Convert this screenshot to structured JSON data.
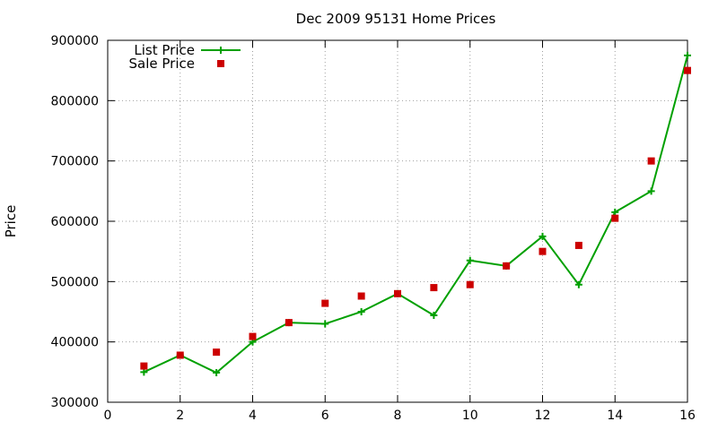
{
  "chart_data": {
    "type": "line",
    "title": "Dec 2009 95131 Home Prices",
    "xlabel": "",
    "ylabel": "Price",
    "xlim": [
      0,
      16
    ],
    "ylim": [
      300000,
      900000
    ],
    "x_ticks": [
      0,
      2,
      4,
      6,
      8,
      10,
      12,
      14,
      16
    ],
    "y_ticks": [
      300000,
      400000,
      500000,
      600000,
      700000,
      800000,
      900000
    ],
    "grid": true,
    "legend_position": "top-left",
    "series": [
      {
        "name": "List Price",
        "style": "line with plus markers",
        "color": "#00a000",
        "x": [
          1,
          2,
          3,
          4,
          5,
          6,
          7,
          8,
          9,
          10,
          11,
          12,
          13,
          14,
          15,
          16
        ],
        "values": [
          350000,
          378000,
          349000,
          400000,
          432000,
          430000,
          450000,
          480000,
          444000,
          535000,
          526000,
          575000,
          495000,
          615000,
          650000,
          875000
        ]
      },
      {
        "name": "Sale Price",
        "style": "square markers",
        "color": "#cc0000",
        "x": [
          1,
          2,
          3,
          4,
          5,
          6,
          7,
          8,
          9,
          10,
          11,
          12,
          13,
          14,
          15,
          16
        ],
        "values": [
          360000,
          378000,
          383000,
          409000,
          432000,
          464000,
          476000,
          480000,
          490000,
          495000,
          526000,
          550000,
          560000,
          605000,
          700000,
          850000
        ]
      }
    ]
  }
}
